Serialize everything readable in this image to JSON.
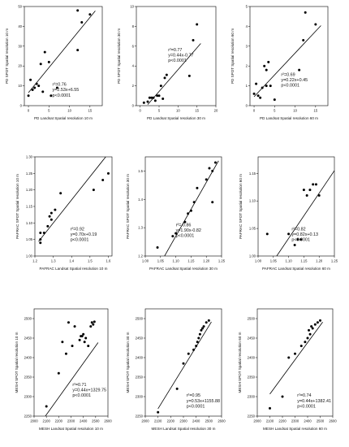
{
  "chart_data": [
    {
      "type": "scatter",
      "xlabel": "PD Landsat Spatial resolution 10 m",
      "ylabel": "PD SPOT Spatial resolution 10 m",
      "xticks": [
        "0",
        "5",
        "10",
        "15"
      ],
      "yticks": [
        "0",
        "10",
        "20",
        "30",
        "40",
        "50"
      ],
      "xlim": [
        -1,
        18
      ],
      "ylim": [
        0,
        50
      ],
      "stats": [
        "r²=0.76",
        "y=2.53x+6.55",
        "p<0.0001"
      ],
      "fit": {
        "slope": 2.53,
        "intercept": 6.55,
        "x_range": [
          0,
          16.3
        ]
      },
      "points": [
        [
          0,
          5
        ],
        [
          0.5,
          13
        ],
        [
          1,
          8
        ],
        [
          1.5,
          9
        ],
        [
          2,
          11
        ],
        [
          2.5,
          10
        ],
        [
          3,
          21
        ],
        [
          3.5,
          7
        ],
        [
          4,
          27
        ],
        [
          5,
          22
        ],
        [
          5.5,
          5
        ],
        [
          7,
          9
        ],
        [
          12,
          28
        ],
        [
          12,
          48
        ],
        [
          13,
          42
        ],
        [
          15,
          46
        ]
      ]
    },
    {
      "type": "scatter",
      "xlabel": "PD Landsat Spatial resolution 30 m",
      "ylabel": "PD SPOT Spatial resolution 30 m",
      "xticks": [
        "0",
        "5",
        "10",
        "15",
        "20"
      ],
      "yticks": [
        "0",
        "2",
        "4",
        "6",
        "8",
        "10"
      ],
      "xlim": [
        -1,
        20
      ],
      "ylim": [
        0,
        10
      ],
      "stats": [
        "r²=0.77",
        "y=0.44x-0.77",
        "p<0.0001"
      ],
      "fit": {
        "slope": 0.44,
        "intercept": -0.77,
        "x_range": [
          2,
          16
        ]
      },
      "points": [
        [
          1,
          0.3
        ],
        [
          2,
          0.4
        ],
        [
          2.5,
          0.8
        ],
        [
          3,
          0.8
        ],
        [
          3.5,
          0.8
        ],
        [
          4,
          0.5
        ],
        [
          4.5,
          1.0
        ],
        [
          5,
          1.0
        ],
        [
          5.5,
          2.0
        ],
        [
          6,
          0.7
        ],
        [
          6.5,
          2.8
        ],
        [
          7,
          3.1
        ],
        [
          13,
          3.0
        ],
        [
          14,
          6.6
        ],
        [
          15,
          8.2
        ]
      ]
    },
    {
      "type": "scatter",
      "xlabel": "PD Landsat Spatial resolution 60 m",
      "ylabel": "PD SPOT Spatial resolution 60 m",
      "xticks": [
        "0",
        "5",
        "10",
        "15"
      ],
      "yticks": [
        "0",
        "1",
        "2",
        "3",
        "4",
        "5"
      ],
      "xlim": [
        -1,
        18
      ],
      "ylim": [
        0,
        5
      ],
      "stats": [
        "r²=0.69",
        "y=0.22x+0.45",
        "p<0.0001"
      ],
      "fit": {
        "slope": 0.22,
        "intercept": 0.45,
        "x_range": [
          0,
          16.3
        ]
      },
      "points": [
        [
          0,
          0.6
        ],
        [
          0.5,
          1.1
        ],
        [
          1,
          0.5
        ],
        [
          1.5,
          0.4
        ],
        [
          2,
          0.9
        ],
        [
          2.5,
          2.0
        ],
        [
          3,
          1.0
        ],
        [
          3,
          1.8
        ],
        [
          3.5,
          2.2
        ],
        [
          4,
          1.0
        ],
        [
          5,
          0.3
        ],
        [
          11,
          1.8
        ],
        [
          12,
          3.3
        ],
        [
          12.5,
          4.7
        ],
        [
          15,
          4.1
        ]
      ]
    },
    {
      "type": "scatter",
      "xlabel": "PAFRAC Landsat Spatial resolution 10 m",
      "ylabel": "PAFRAC SPOT Spatial resolution 10 m",
      "xticks": [
        "1.2",
        "1.3",
        "1.4",
        "1.5",
        "1.6"
      ],
      "yticks": [
        "1.00",
        "1.05",
        "1.10",
        "1.15",
        "1.20",
        "1.25",
        "1.30"
      ],
      "xlim": [
        1.2,
        1.62
      ],
      "ylim": [
        1.0,
        1.3
      ],
      "stats": [
        "r²=0.92",
        "y=0.70x+0.19",
        "p<0.0001"
      ],
      "fit": {
        "slope": 0.7,
        "intercept": 0.19,
        "x_range": [
          1.22,
          1.62
        ]
      },
      "points": [
        [
          1.23,
          1.04
        ],
        [
          1.23,
          1.05
        ],
        [
          1.23,
          1.07
        ],
        [
          1.25,
          1.07
        ],
        [
          1.27,
          1.09
        ],
        [
          1.28,
          1.12
        ],
        [
          1.29,
          1.11
        ],
        [
          1.29,
          1.13
        ],
        [
          1.31,
          1.14
        ],
        [
          1.34,
          1.19
        ],
        [
          1.52,
          1.2
        ],
        [
          1.57,
          1.23
        ],
        [
          1.6,
          1.25
        ]
      ]
    },
    {
      "type": "scatter",
      "xlabel": "PAFRAC Landsat Spatial resolution 30 m",
      "ylabel": "PAFRAC SPOT Spatial resolution 30 m",
      "xticks": [
        "1.00",
        "1.05",
        "1.10",
        "1.15",
        "1.20",
        "1.25"
      ],
      "yticks": [
        "1.2",
        "1.3",
        "1.4",
        "1.5"
      ],
      "xlim": [
        1.0,
        1.25
      ],
      "ylim": [
        1.2,
        1.55
      ],
      "stats": [
        "r²= 0.86",
        "y=1.90x-0.82",
        "p<0.0001"
      ],
      "fit": {
        "slope": 1.9,
        "intercept": -0.82,
        "x_range": [
          1.06,
          1.24
        ]
      },
      "points": [
        [
          1.04,
          1.23
        ],
        [
          1.09,
          1.27
        ],
        [
          1.1,
          1.28
        ],
        [
          1.13,
          1.32
        ],
        [
          1.14,
          1.35
        ],
        [
          1.15,
          1.36
        ],
        [
          1.16,
          1.39
        ],
        [
          1.17,
          1.44
        ],
        [
          1.2,
          1.47
        ],
        [
          1.21,
          1.51
        ],
        [
          1.22,
          1.5
        ],
        [
          1.23,
          1.53
        ],
        [
          1.22,
          1.39
        ]
      ]
    },
    {
      "type": "scatter",
      "xlabel": "PAFRAC Landsat Spatial resolution 60 m",
      "ylabel": "PAFRAC SPOT Spatial resolution 60 m",
      "xticks": [
        "1.00",
        "1.05",
        "1.10",
        "1.15",
        "1.20",
        "1.25"
      ],
      "yticks": [
        "1.00",
        "1.05",
        "1.10",
        "1.15"
      ],
      "xlim": [
        1.0,
        1.25
      ],
      "ylim": [
        1.0,
        1.18
      ],
      "stats": [
        "r²=0.82",
        "y=0.82x+0.13",
        "p<0.0001"
      ],
      "fit": {
        "slope": 0.82,
        "intercept": 0.13,
        "x_range": [
          1.0,
          1.25
        ]
      },
      "points": [
        [
          1.03,
          1.04
        ],
        [
          1.1,
          1.04
        ],
        [
          1.12,
          1.02
        ],
        [
          1.13,
          1.03
        ],
        [
          1.14,
          1.03
        ],
        [
          1.15,
          1.12
        ],
        [
          1.16,
          1.11
        ],
        [
          1.17,
          1.12
        ],
        [
          1.18,
          1.13
        ],
        [
          1.19,
          1.13
        ],
        [
          1.2,
          1.11
        ]
      ]
    },
    {
      "type": "scatter",
      "xlabel": "MESH Landsat Spatial resolution 10 m",
      "ylabel": "MESH SPOT Spatial resolution 10 m",
      "xticks": [
        "2000",
        "2100",
        "2200",
        "2300",
        "2400",
        "2500",
        "2600"
      ],
      "yticks": [
        "2250",
        "2300",
        "2350",
        "2400",
        "2450",
        "2500"
      ],
      "xlim": [
        2000,
        2600
      ],
      "ylim": [
        2250,
        2525
      ],
      "stats": [
        "r²=0.71",
        "y=0.44x+1329.75",
        "p<0.0001"
      ],
      "fit": {
        "slope": 0.44,
        "intercept": 1329.75,
        "x_range": [
          2080,
          2520
        ]
      },
      "points": [
        [
          2100,
          2275
        ],
        [
          2200,
          2360
        ],
        [
          2230,
          2440
        ],
        [
          2260,
          2410
        ],
        [
          2280,
          2490
        ],
        [
          2310,
          2430
        ],
        [
          2330,
          2480
        ],
        [
          2370,
          2445
        ],
        [
          2380,
          2455
        ],
        [
          2390,
          2455
        ],
        [
          2400,
          2460
        ],
        [
          2410,
          2440
        ],
        [
          2420,
          2450
        ],
        [
          2440,
          2430
        ],
        [
          2460,
          2480
        ],
        [
          2470,
          2490
        ],
        [
          2480,
          2485
        ],
        [
          2490,
          2492
        ]
      ]
    },
    {
      "type": "scatter",
      "xlabel": "MESH Landsat Spatial resolution 30 m",
      "ylabel": "MESH SPOT Spatial resolution 30 m",
      "xticks": [
        "2000",
        "2100",
        "2200",
        "2300",
        "2400",
        "2500",
        "2600"
      ],
      "yticks": [
        "2250",
        "2300",
        "2350",
        "2400",
        "2450",
        "2500"
      ],
      "xlim": [
        2000,
        2600
      ],
      "ylim": [
        2250,
        2525
      ],
      "stats": [
        "r²=0.95",
        "y=0.53x+1155.88",
        "p<0.0001"
      ],
      "fit": {
        "slope": 0.53,
        "intercept": 1155.88,
        "x_range": [
          2100,
          2520
        ]
      },
      "points": [
        [
          2100,
          2260
        ],
        [
          2250,
          2320
        ],
        [
          2300,
          2385
        ],
        [
          2340,
          2410
        ],
        [
          2380,
          2420
        ],
        [
          2400,
          2430
        ],
        [
          2410,
          2440
        ],
        [
          2420,
          2450
        ],
        [
          2430,
          2460
        ],
        [
          2440,
          2470
        ],
        [
          2450,
          2475
        ],
        [
          2460,
          2480
        ],
        [
          2480,
          2490
        ],
        [
          2500,
          2495
        ]
      ]
    },
    {
      "type": "scatter",
      "xlabel": "MESH Landsat Spatial resolution 60 m",
      "ylabel": "MESH SPOT Spatial resolution 60 m",
      "xticks": [
        "2000",
        "2100",
        "2200",
        "2300",
        "2400",
        "2500",
        "2600"
      ],
      "yticks": [
        "2250",
        "2300",
        "2350",
        "2400",
        "2450",
        "2500"
      ],
      "xlim": [
        2000,
        2600
      ],
      "ylim": [
        2250,
        2525
      ],
      "stats": [
        "r²=0.74",
        "y=0.44x+1382.41",
        "p<0.0001"
      ],
      "fit": {
        "slope": 0.44,
        "intercept": 1382.41,
        "x_range": [
          2100,
          2520
        ]
      },
      "points": [
        [
          2100,
          2270
        ],
        [
          2200,
          2300
        ],
        [
          2250,
          2400
        ],
        [
          2300,
          2410
        ],
        [
          2350,
          2430
        ],
        [
          2380,
          2440
        ],
        [
          2400,
          2450
        ],
        [
          2410,
          2470
        ],
        [
          2420,
          2460
        ],
        [
          2430,
          2480
        ],
        [
          2440,
          2475
        ],
        [
          2460,
          2485
        ],
        [
          2480,
          2490
        ],
        [
          2500,
          2495
        ]
      ]
    }
  ]
}
